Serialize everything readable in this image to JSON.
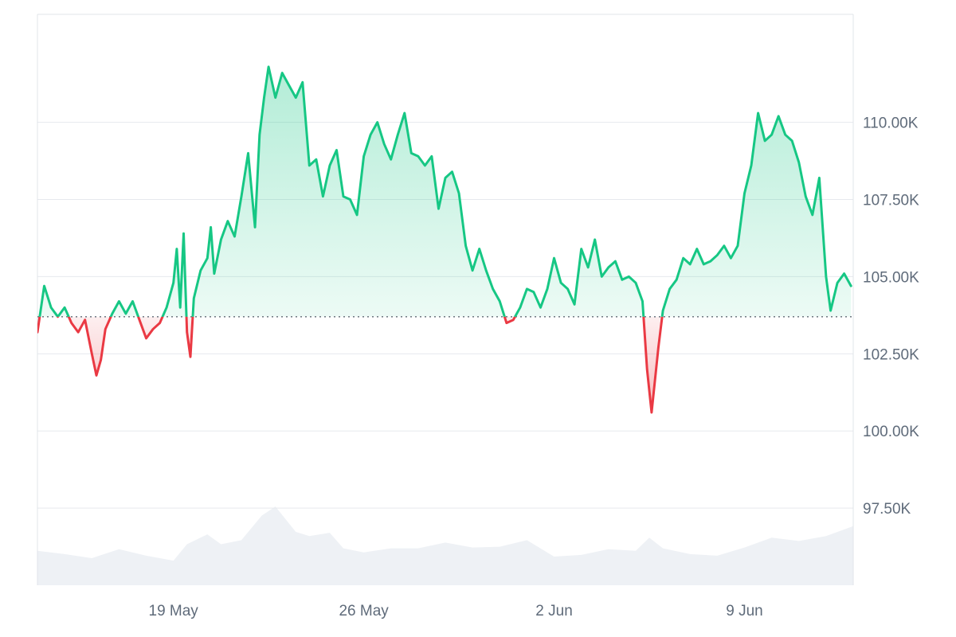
{
  "chart_data": {
    "type": "area",
    "baseline": 103.7,
    "ylim": [
      95.0,
      113.5
    ],
    "y_ticks": [
      {
        "value": 110.0,
        "label": "110.00K"
      },
      {
        "value": 107.5,
        "label": "107.50K"
      },
      {
        "value": 105.0,
        "label": "105.00K"
      },
      {
        "value": 102.5,
        "label": "102.50K"
      },
      {
        "value": 100.0,
        "label": "100.00K"
      },
      {
        "value": 97.5,
        "label": "97.50K"
      }
    ],
    "x_range": [
      "2025-05-14",
      "2025-06-12"
    ],
    "x_ticks": [
      {
        "date": "2025-05-19",
        "label": "19 May"
      },
      {
        "date": "2025-05-26",
        "label": "26 May"
      },
      {
        "date": "2025-06-02",
        "label": "2 Jun"
      },
      {
        "date": "2025-06-09",
        "label": "9 Jun"
      }
    ],
    "grid": true,
    "colors": {
      "up": "#16c784",
      "down": "#ea3943",
      "volume": "#eef1f5"
    },
    "series": [
      {
        "values": [
          [
            "2025-05-14 00:00",
            103.2
          ],
          [
            "2025-05-14 06:00",
            104.7
          ],
          [
            "2025-05-14 12:00",
            104.0
          ],
          [
            "2025-05-14 18:00",
            103.7
          ],
          [
            "2025-05-15 00:00",
            104.0
          ],
          [
            "2025-05-15 06:00",
            103.5
          ],
          [
            "2025-05-15 12:00",
            103.2
          ],
          [
            "2025-05-15 18:00",
            103.6
          ],
          [
            "2025-05-16 00:00",
            102.5
          ],
          [
            "2025-05-16 04:00",
            101.8
          ],
          [
            "2025-05-16 08:00",
            102.3
          ],
          [
            "2025-05-16 12:00",
            103.3
          ],
          [
            "2025-05-16 18:00",
            103.8
          ],
          [
            "2025-05-17 00:00",
            104.2
          ],
          [
            "2025-05-17 06:00",
            103.8
          ],
          [
            "2025-05-17 12:00",
            104.2
          ],
          [
            "2025-05-17 18:00",
            103.6
          ],
          [
            "2025-05-18 00:00",
            103.0
          ],
          [
            "2025-05-18 06:00",
            103.3
          ],
          [
            "2025-05-18 12:00",
            103.5
          ],
          [
            "2025-05-18 18:00",
            104.0
          ],
          [
            "2025-05-19 00:00",
            104.8
          ],
          [
            "2025-05-19 03:00",
            105.9
          ],
          [
            "2025-05-19 06:00",
            104.0
          ],
          [
            "2025-05-19 09:00",
            106.4
          ],
          [
            "2025-05-19 12:00",
            103.2
          ],
          [
            "2025-05-19 15:00",
            102.4
          ],
          [
            "2025-05-19 18:00",
            104.3
          ],
          [
            "2025-05-20 00:00",
            105.2
          ],
          [
            "2025-05-20 06:00",
            105.6
          ],
          [
            "2025-05-20 09:00",
            106.6
          ],
          [
            "2025-05-20 12:00",
            105.1
          ],
          [
            "2025-05-20 18:00",
            106.2
          ],
          [
            "2025-05-21 00:00",
            106.8
          ],
          [
            "2025-05-21 06:00",
            106.3
          ],
          [
            "2025-05-21 12:00",
            107.6
          ],
          [
            "2025-05-21 18:00",
            109.0
          ],
          [
            "2025-05-22 00:00",
            106.6
          ],
          [
            "2025-05-22 04:00",
            109.6
          ],
          [
            "2025-05-22 08:00",
            110.8
          ],
          [
            "2025-05-22 12:00",
            111.8
          ],
          [
            "2025-05-22 18:00",
            110.8
          ],
          [
            "2025-05-23 00:00",
            111.6
          ],
          [
            "2025-05-23 06:00",
            111.2
          ],
          [
            "2025-05-23 12:00",
            110.8
          ],
          [
            "2025-05-23 18:00",
            111.3
          ],
          [
            "2025-05-24 00:00",
            108.6
          ],
          [
            "2025-05-24 06:00",
            108.8
          ],
          [
            "2025-05-24 12:00",
            107.6
          ],
          [
            "2025-05-24 18:00",
            108.6
          ],
          [
            "2025-05-25 00:00",
            109.1
          ],
          [
            "2025-05-25 06:00",
            107.6
          ],
          [
            "2025-05-25 12:00",
            107.5
          ],
          [
            "2025-05-25 18:00",
            107.0
          ],
          [
            "2025-05-26 00:00",
            108.9
          ],
          [
            "2025-05-26 06:00",
            109.6
          ],
          [
            "2025-05-26 12:00",
            110.0
          ],
          [
            "2025-05-26 18:00",
            109.3
          ],
          [
            "2025-05-27 00:00",
            108.8
          ],
          [
            "2025-05-27 06:00",
            109.6
          ],
          [
            "2025-05-27 12:00",
            110.3
          ],
          [
            "2025-05-27 18:00",
            109.0
          ],
          [
            "2025-05-28 00:00",
            108.9
          ],
          [
            "2025-05-28 06:00",
            108.6
          ],
          [
            "2025-05-28 12:00",
            108.9
          ],
          [
            "2025-05-28 18:00",
            107.2
          ],
          [
            "2025-05-29 00:00",
            108.2
          ],
          [
            "2025-05-29 06:00",
            108.4
          ],
          [
            "2025-05-29 12:00",
            107.7
          ],
          [
            "2025-05-29 18:00",
            106.0
          ],
          [
            "2025-05-30 00:00",
            105.2
          ],
          [
            "2025-05-30 06:00",
            105.9
          ],
          [
            "2025-05-30 12:00",
            105.2
          ],
          [
            "2025-05-30 18:00",
            104.6
          ],
          [
            "2025-05-31 00:00",
            104.2
          ],
          [
            "2025-05-31 06:00",
            103.5
          ],
          [
            "2025-05-31 12:00",
            103.6
          ],
          [
            "2025-05-31 18:00",
            104.0
          ],
          [
            "2025-06-01 00:00",
            104.6
          ],
          [
            "2025-06-01 06:00",
            104.5
          ],
          [
            "2025-06-01 12:00",
            104.0
          ],
          [
            "2025-06-01 18:00",
            104.6
          ],
          [
            "2025-06-02 00:00",
            105.6
          ],
          [
            "2025-06-02 06:00",
            104.8
          ],
          [
            "2025-06-02 12:00",
            104.6
          ],
          [
            "2025-06-02 18:00",
            104.1
          ],
          [
            "2025-06-03 00:00",
            105.9
          ],
          [
            "2025-06-03 06:00",
            105.3
          ],
          [
            "2025-06-03 12:00",
            106.2
          ],
          [
            "2025-06-03 18:00",
            105.0
          ],
          [
            "2025-06-04 00:00",
            105.3
          ],
          [
            "2025-06-04 06:00",
            105.5
          ],
          [
            "2025-06-04 12:00",
            104.9
          ],
          [
            "2025-06-04 18:00",
            105.0
          ],
          [
            "2025-06-05 00:00",
            104.8
          ],
          [
            "2025-06-05 06:00",
            104.2
          ],
          [
            "2025-06-05 10:00",
            102.0
          ],
          [
            "2025-06-05 14:00",
            100.6
          ],
          [
            "2025-06-05 20:00",
            102.7
          ],
          [
            "2025-06-06 00:00",
            103.9
          ],
          [
            "2025-06-06 06:00",
            104.6
          ],
          [
            "2025-06-06 12:00",
            104.9
          ],
          [
            "2025-06-06 18:00",
            105.6
          ],
          [
            "2025-06-07 00:00",
            105.4
          ],
          [
            "2025-06-07 06:00",
            105.9
          ],
          [
            "2025-06-07 12:00",
            105.4
          ],
          [
            "2025-06-07 18:00",
            105.5
          ],
          [
            "2025-06-08 00:00",
            105.7
          ],
          [
            "2025-06-08 06:00",
            106.0
          ],
          [
            "2025-06-08 12:00",
            105.6
          ],
          [
            "2025-06-08 18:00",
            106.0
          ],
          [
            "2025-06-09 00:00",
            107.7
          ],
          [
            "2025-06-09 06:00",
            108.6
          ],
          [
            "2025-06-09 12:00",
            110.3
          ],
          [
            "2025-06-09 18:00",
            109.4
          ],
          [
            "2025-06-10 00:00",
            109.6
          ],
          [
            "2025-06-10 06:00",
            110.2
          ],
          [
            "2025-06-10 12:00",
            109.6
          ],
          [
            "2025-06-10 18:00",
            109.4
          ],
          [
            "2025-06-11 00:00",
            108.7
          ],
          [
            "2025-06-11 06:00",
            107.6
          ],
          [
            "2025-06-11 12:00",
            107.0
          ],
          [
            "2025-06-11 18:00",
            108.2
          ],
          [
            "2025-06-12 00:00",
            105.0
          ],
          [
            "2025-06-12 04:00",
            103.9
          ],
          [
            "2025-06-12 10:00",
            104.8
          ],
          [
            "2025-06-12 16:00",
            105.1
          ],
          [
            "2025-06-12 22:00",
            104.7
          ]
        ]
      }
    ],
    "volume": {
      "values": [
        [
          "2025-05-14 00:00",
          0.42
        ],
        [
          "2025-05-15 00:00",
          0.38
        ],
        [
          "2025-05-16 00:00",
          0.33
        ],
        [
          "2025-05-17 00:00",
          0.44
        ],
        [
          "2025-05-18 00:00",
          0.36
        ],
        [
          "2025-05-19 00:00",
          0.3
        ],
        [
          "2025-05-19 12:00",
          0.5
        ],
        [
          "2025-05-20 06:00",
          0.62
        ],
        [
          "2025-05-20 18:00",
          0.5
        ],
        [
          "2025-05-21 12:00",
          0.55
        ],
        [
          "2025-05-22 06:00",
          0.85
        ],
        [
          "2025-05-22 18:00",
          0.96
        ],
        [
          "2025-05-23 12:00",
          0.65
        ],
        [
          "2025-05-24 00:00",
          0.6
        ],
        [
          "2025-05-24 18:00",
          0.64
        ],
        [
          "2025-05-25 06:00",
          0.45
        ],
        [
          "2025-05-26 00:00",
          0.4
        ],
        [
          "2025-05-27 00:00",
          0.45
        ],
        [
          "2025-05-28 00:00",
          0.45
        ],
        [
          "2025-05-29 00:00",
          0.52
        ],
        [
          "2025-05-30 00:00",
          0.46
        ],
        [
          "2025-05-31 00:00",
          0.47
        ],
        [
          "2025-06-01 00:00",
          0.55
        ],
        [
          "2025-06-02 00:00",
          0.35
        ],
        [
          "2025-06-03 00:00",
          0.37
        ],
        [
          "2025-06-04 00:00",
          0.44
        ],
        [
          "2025-06-05 00:00",
          0.42
        ],
        [
          "2025-06-05 12:00",
          0.58
        ],
        [
          "2025-06-06 00:00",
          0.45
        ],
        [
          "2025-06-07 00:00",
          0.38
        ],
        [
          "2025-06-08 00:00",
          0.36
        ],
        [
          "2025-06-09 00:00",
          0.46
        ],
        [
          "2025-06-10 00:00",
          0.58
        ],
        [
          "2025-06-11 00:00",
          0.54
        ],
        [
          "2025-06-12 00:00",
          0.6
        ],
        [
          "2025-06-12 23:59",
          0.72
        ]
      ]
    }
  }
}
